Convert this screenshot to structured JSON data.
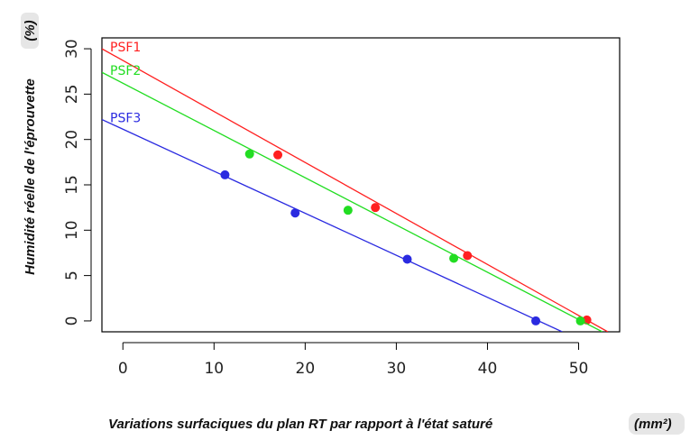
{
  "chart_data": {
    "type": "scatter",
    "title": "",
    "xlabel": "Variations surfaciques du plan RT par rapport à l'état saturé",
    "xlabel_unit": "(mm²)",
    "ylabel": "Humidité réelle de l'éprouvette",
    "ylabel_unit": "(%)",
    "xlim": [
      -2.3,
      54.5
    ],
    "ylim": [
      -1.2,
      31.2
    ],
    "x_ticks": [
      0,
      10,
      20,
      30,
      40,
      50
    ],
    "y_ticks": [
      0,
      5,
      10,
      15,
      20,
      25,
      30
    ],
    "grid": false,
    "legend": "inline labels at top-left of each fit line",
    "series": [
      {
        "name": "PSF1",
        "color": "#ff2020",
        "points": [
          [
            17.0,
            18.3
          ],
          [
            27.7,
            12.5
          ],
          [
            37.8,
            7.2
          ],
          [
            50.9,
            0.1
          ]
        ],
        "fit_line": {
          "x": [
            -2.3,
            53.2
          ],
          "y": [
            30.0,
            -1.2
          ]
        }
      },
      {
        "name": "PSF2",
        "color": "#22dd22",
        "points": [
          [
            13.9,
            18.4
          ],
          [
            24.7,
            12.2
          ],
          [
            36.3,
            6.9
          ],
          [
            50.2,
            0.0
          ]
        ],
        "fit_line": {
          "x": [
            -2.3,
            52.6
          ],
          "y": [
            27.4,
            -1.2
          ]
        }
      },
      {
        "name": "PSF3",
        "color": "#2a2ae0",
        "points": [
          [
            11.2,
            16.1
          ],
          [
            18.9,
            11.9
          ],
          [
            31.2,
            6.8
          ],
          [
            45.3,
            0.0
          ]
        ],
        "fit_line": {
          "x": [
            -2.3,
            48.2
          ],
          "y": [
            22.2,
            -1.2
          ]
        }
      }
    ]
  }
}
